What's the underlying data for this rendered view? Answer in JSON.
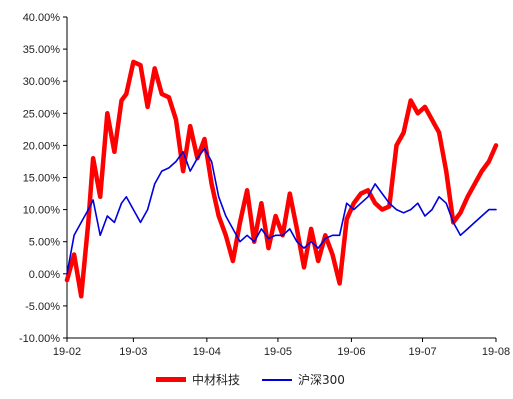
{
  "chart_data": {
    "type": "line",
    "title": "",
    "xlabel": "",
    "ylabel": "",
    "xlim": [
      "2019-02-01",
      "2019-08-01"
    ],
    "ylim": [
      -10,
      40
    ],
    "y_ticks": [
      "-10.00%",
      "-5.00%",
      "0.00%",
      "5.00%",
      "10.00%",
      "15.00%",
      "20.00%",
      "25.00%",
      "30.00%",
      "35.00%",
      "40.00%"
    ],
    "x_ticks": [
      "19-02",
      "19-03",
      "19-04",
      "19-05",
      "19-06",
      "19-07",
      "19-08"
    ],
    "grid": false,
    "legend_position": "bottom",
    "series": [
      {
        "name": "中材科技",
        "color": "#ff0000",
        "x": [
          "2019-02-01",
          "2019-02-04",
          "2019-02-07",
          "2019-02-10",
          "2019-02-12",
          "2019-02-15",
          "2019-02-18",
          "2019-02-21",
          "2019-02-24",
          "2019-02-26",
          "2019-03-01",
          "2019-03-04",
          "2019-03-07",
          "2019-03-10",
          "2019-03-13",
          "2019-03-16",
          "2019-03-19",
          "2019-03-22",
          "2019-03-25",
          "2019-03-28",
          "2019-03-31",
          "2019-04-03",
          "2019-04-06",
          "2019-04-09",
          "2019-04-12",
          "2019-04-15",
          "2019-04-18",
          "2019-04-21",
          "2019-04-24",
          "2019-04-27",
          "2019-04-30",
          "2019-05-03",
          "2019-05-06",
          "2019-05-09",
          "2019-05-12",
          "2019-05-15",
          "2019-05-18",
          "2019-05-21",
          "2019-05-24",
          "2019-05-27",
          "2019-05-30",
          "2019-06-02",
          "2019-06-05",
          "2019-06-08",
          "2019-06-11",
          "2019-06-14",
          "2019-06-17",
          "2019-06-20",
          "2019-06-23",
          "2019-06-26",
          "2019-06-29",
          "2019-07-02",
          "2019-07-05",
          "2019-07-08",
          "2019-07-11",
          "2019-07-14",
          "2019-07-17",
          "2019-07-20",
          "2019-07-23",
          "2019-07-26",
          "2019-07-29",
          "2019-08-01"
        ],
        "values": [
          -1.0,
          3.0,
          -3.5,
          8.0,
          18.0,
          12.0,
          25.0,
          19.0,
          27.0,
          28.0,
          33.0,
          32.5,
          26.0,
          32.0,
          28.0,
          27.5,
          24.0,
          16.0,
          23.0,
          18.0,
          21.0,
          14.0,
          9.0,
          6.0,
          2.0,
          8.0,
          13.0,
          5.0,
          11.0,
          4.0,
          9.0,
          6.0,
          12.5,
          7.0,
          1.0,
          7.0,
          2.0,
          6.0,
          3.0,
          -1.5,
          8.5,
          11.0,
          12.5,
          13.0,
          11.0,
          10.0,
          10.5,
          20.0,
          22.0,
          27.0,
          25.0,
          26.0,
          24.0,
          22.0,
          16.0,
          8.0,
          9.5,
          12.0,
          14.0,
          16.0,
          17.5,
          20.0
        ]
      },
      {
        "name": "沪深300",
        "color": "#0000dd",
        "x": [
          "2019-02-01",
          "2019-02-04",
          "2019-02-07",
          "2019-02-10",
          "2019-02-12",
          "2019-02-15",
          "2019-02-18",
          "2019-02-21",
          "2019-02-24",
          "2019-02-26",
          "2019-03-01",
          "2019-03-04",
          "2019-03-07",
          "2019-03-10",
          "2019-03-13",
          "2019-03-16",
          "2019-03-19",
          "2019-03-22",
          "2019-03-25",
          "2019-03-28",
          "2019-03-31",
          "2019-04-03",
          "2019-04-06",
          "2019-04-09",
          "2019-04-12",
          "2019-04-15",
          "2019-04-18",
          "2019-04-21",
          "2019-04-24",
          "2019-04-27",
          "2019-04-30",
          "2019-05-03",
          "2019-05-06",
          "2019-05-09",
          "2019-05-12",
          "2019-05-15",
          "2019-05-18",
          "2019-05-21",
          "2019-05-24",
          "2019-05-27",
          "2019-05-30",
          "2019-06-02",
          "2019-06-05",
          "2019-06-08",
          "2019-06-11",
          "2019-06-14",
          "2019-06-17",
          "2019-06-20",
          "2019-06-23",
          "2019-06-26",
          "2019-06-29",
          "2019-07-02",
          "2019-07-05",
          "2019-07-08",
          "2019-07-11",
          "2019-07-14",
          "2019-07-17",
          "2019-07-20",
          "2019-07-23",
          "2019-07-26",
          "2019-07-29",
          "2019-08-01"
        ],
        "values": [
          0.0,
          6.0,
          8.0,
          10.0,
          11.5,
          6.0,
          9.0,
          8.0,
          11.0,
          12.0,
          10.0,
          8.0,
          10.0,
          14.0,
          16.0,
          16.5,
          17.5,
          19.0,
          16.0,
          18.0,
          19.5,
          17.5,
          12.0,
          9.0,
          7.0,
          5.0,
          6.0,
          5.0,
          7.0,
          5.5,
          6.0,
          6.0,
          7.0,
          5.0,
          4.0,
          5.0,
          4.0,
          5.5,
          6.0,
          6.0,
          11.0,
          10.0,
          11.0,
          12.0,
          14.0,
          12.5,
          11.0,
          10.0,
          9.5,
          10.0,
          11.0,
          9.0,
          10.0,
          12.0,
          11.0,
          8.0,
          6.0,
          7.0,
          8.0,
          9.0,
          10.0,
          10.0
        ]
      }
    ]
  }
}
